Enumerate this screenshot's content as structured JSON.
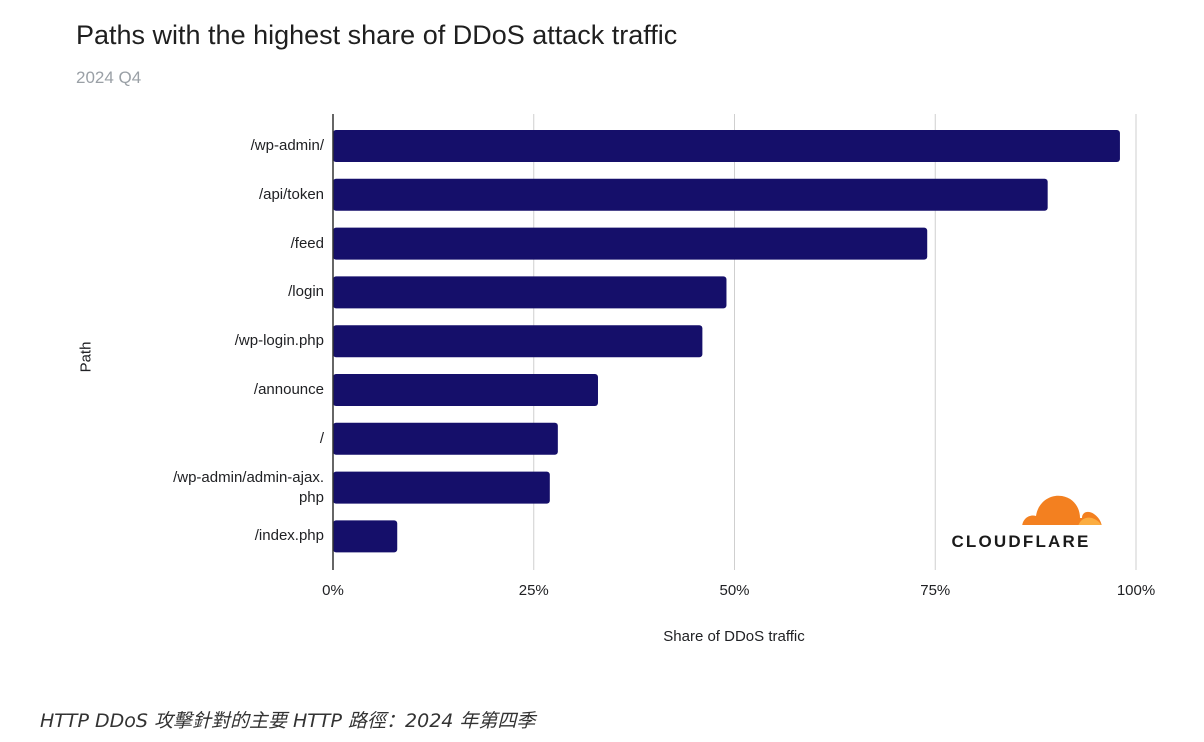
{
  "header": {
    "title": "Paths with the highest share of DDoS attack traffic",
    "subtitle": "2024 Q4"
  },
  "caption": "HTTP DDoS 攻擊針對的主要 HTTP 路徑：2024 年第四季",
  "logo": {
    "text": "CLOUDFLARE",
    "icon": "cloud-icon"
  },
  "colors": {
    "bar": "#150f6a",
    "grid": "#cfcfcf",
    "axis": "#333333",
    "logo_orange": "#f38020",
    "logo_light": "#fbad41"
  },
  "chart_data": {
    "type": "bar",
    "orientation": "horizontal",
    "title": "Paths with the highest share of DDoS attack traffic",
    "subtitle": "2024 Q4",
    "xlabel": "Share of DDoS traffic",
    "ylabel": "Path",
    "categories": [
      "/wp-admin/",
      "/api/token",
      "/feed",
      "/login",
      "/wp-login.php",
      "/announce",
      "/",
      "/wp-admin/admin-ajax.php",
      "/index.php"
    ],
    "category_lines": [
      [
        "/wp-admin/"
      ],
      [
        "/api/token"
      ],
      [
        "/feed"
      ],
      [
        "/login"
      ],
      [
        "/wp-login.php"
      ],
      [
        "/announce"
      ],
      [
        "/"
      ],
      [
        "/wp-admin/admin-ajax.",
        "php"
      ],
      [
        "/index.php"
      ]
    ],
    "values": [
      98,
      89,
      74,
      49,
      46,
      33,
      28,
      27,
      8
    ],
    "xlim": [
      0,
      100
    ],
    "xticks": [
      0,
      25,
      50,
      75,
      100
    ],
    "xtick_labels": [
      "0%",
      "25%",
      "50%",
      "75%",
      "100%"
    ],
    "grid": true,
    "legend": "none"
  }
}
